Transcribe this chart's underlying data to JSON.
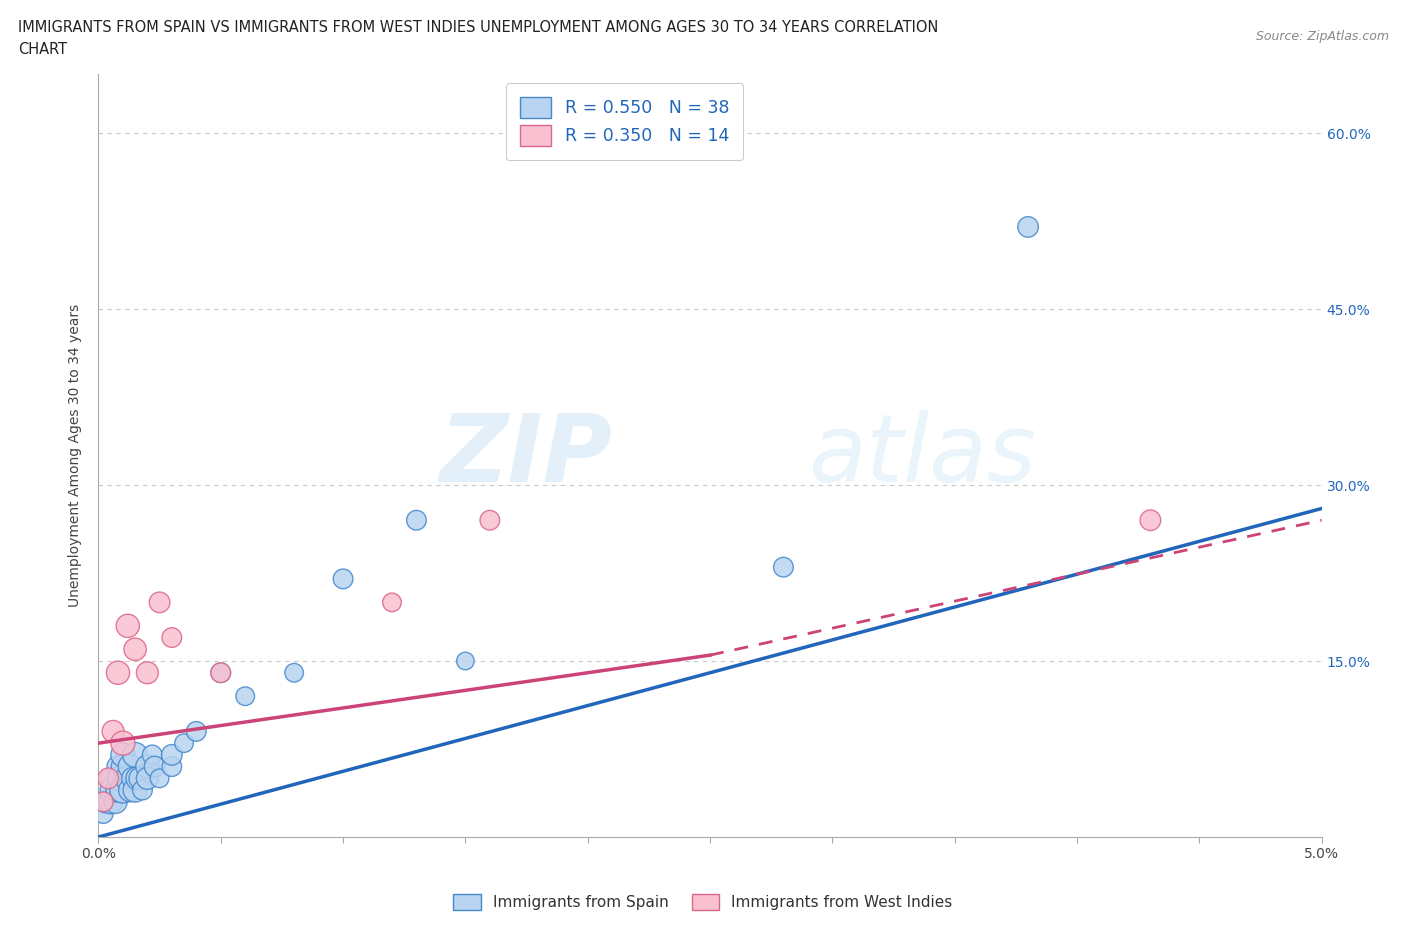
{
  "title_line1": "IMMIGRANTS FROM SPAIN VS IMMIGRANTS FROM WEST INDIES UNEMPLOYMENT AMONG AGES 30 TO 34 YEARS CORRELATION",
  "title_line2": "CHART",
  "source_text": "Source: ZipAtlas.com",
  "ylabel": "Unemployment Among Ages 30 to 34 years",
  "xlim": [
    0.0,
    0.05
  ],
  "ylim": [
    0.0,
    0.65
  ],
  "xticks": [
    0.0,
    0.005,
    0.01,
    0.015,
    0.02,
    0.025,
    0.03,
    0.035,
    0.04,
    0.045,
    0.05
  ],
  "xticklabels": [
    "0.0%",
    "",
    "",
    "",
    "",
    "",
    "",
    "",
    "",
    "",
    "5.0%"
  ],
  "ytick_positions": [
    0.0,
    0.15,
    0.3,
    0.45,
    0.6
  ],
  "ytick_labels": [
    "",
    "15.0%",
    "30.0%",
    "45.0%",
    "60.0%"
  ],
  "grid_color": "#c8c8c8",
  "bg_color": "#ffffff",
  "spain_color": "#b8d4f0",
  "spain_edge_color": "#4488cc",
  "spain_line_color": "#2266bb",
  "west_indies_color": "#f8c0d0",
  "west_indies_edge_color": "#dd6688",
  "west_indies_line_color": "#cc4477",
  "watermark_color": "#ddeeff",
  "spain_scatter_x": [
    0.0002,
    0.0003,
    0.0005,
    0.0005,
    0.0006,
    0.0007,
    0.0008,
    0.0008,
    0.0009,
    0.001,
    0.001,
    0.001,
    0.0012,
    0.0013,
    0.0013,
    0.0014,
    0.0015,
    0.0015,
    0.0016,
    0.0017,
    0.0018,
    0.002,
    0.002,
    0.0022,
    0.0023,
    0.0025,
    0.003,
    0.003,
    0.0035,
    0.004,
    0.005,
    0.006,
    0.008,
    0.01,
    0.013,
    0.015,
    0.028,
    0.038
  ],
  "spain_scatter_y": [
    0.02,
    0.03,
    0.03,
    0.05,
    0.04,
    0.03,
    0.04,
    0.06,
    0.05,
    0.04,
    0.06,
    0.07,
    0.05,
    0.04,
    0.06,
    0.05,
    0.04,
    0.07,
    0.05,
    0.05,
    0.04,
    0.06,
    0.05,
    0.07,
    0.06,
    0.05,
    0.06,
    0.07,
    0.08,
    0.09,
    0.14,
    0.12,
    0.14,
    0.22,
    0.27,
    0.15,
    0.23,
    0.52
  ],
  "spain_scatter_sizes": [
    200,
    250,
    300,
    220,
    350,
    280,
    300,
    250,
    320,
    350,
    280,
    300,
    320,
    280,
    300,
    250,
    300,
    320,
    280,
    250,
    200,
    280,
    250,
    200,
    220,
    180,
    200,
    220,
    180,
    200,
    200,
    180,
    180,
    200,
    200,
    160,
    200,
    220
  ],
  "wi_scatter_x": [
    0.0002,
    0.0004,
    0.0006,
    0.0008,
    0.001,
    0.0012,
    0.0015,
    0.002,
    0.0025,
    0.003,
    0.005,
    0.012,
    0.016,
    0.043
  ],
  "wi_scatter_y": [
    0.03,
    0.05,
    0.09,
    0.14,
    0.08,
    0.18,
    0.16,
    0.14,
    0.2,
    0.17,
    0.14,
    0.2,
    0.27,
    0.27
  ],
  "wi_scatter_sizes": [
    200,
    220,
    250,
    280,
    300,
    280,
    260,
    250,
    220,
    200,
    200,
    180,
    200,
    220
  ],
  "spain_line_x0": 0.0,
  "spain_line_y0": 0.0,
  "spain_line_x1": 0.05,
  "spain_line_y1": 0.28,
  "wi_line_solid_x0": 0.0,
  "wi_line_solid_y0": 0.08,
  "wi_line_solid_x1": 0.025,
  "wi_line_solid_y1": 0.155,
  "wi_line_dashed_x0": 0.025,
  "wi_line_dashed_y0": 0.155,
  "wi_line_dashed_x1": 0.05,
  "wi_line_dashed_y1": 0.27,
  "legend_label_spain": "R = 0.550   N = 38",
  "legend_label_wi": "R = 0.350   N = 14",
  "bottom_legend_spain": "Immigrants from Spain",
  "bottom_legend_wi": "Immigrants from West Indies"
}
